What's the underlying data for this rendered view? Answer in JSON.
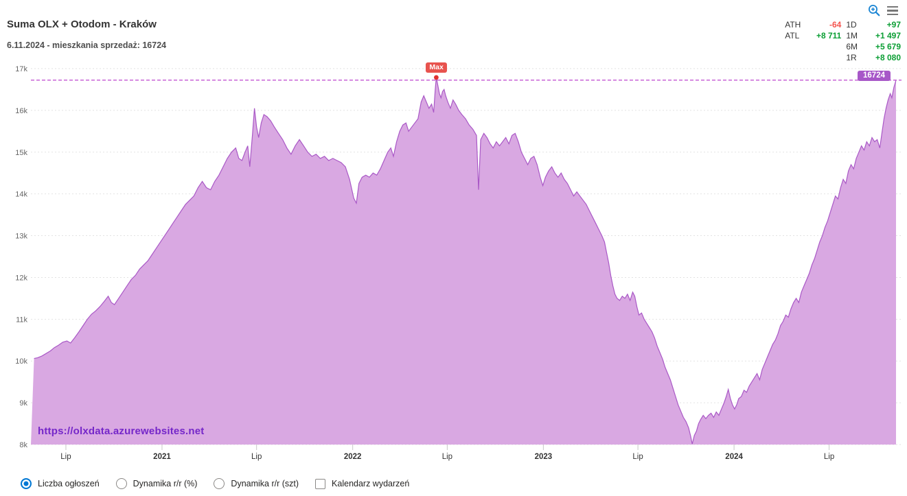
{
  "header": {
    "title": "Suma OLX + Otodom - Kraków",
    "subtitle": "6.11.2024 - mieszkania sprzedaż: 16724"
  },
  "toolbar": {
    "zoom_icon": "zoom-in-magnifier-icon",
    "menu_icon": "hamburger-menu-icon"
  },
  "stats": {
    "col1": [
      {
        "label": "ATH",
        "value": "-64",
        "color": "#f4544e"
      },
      {
        "label": "ATL",
        "value": "+8 711",
        "color": "#0b9e34"
      }
    ],
    "col2": [
      {
        "label": "1D",
        "value": "+97",
        "color": "#0b9e34"
      },
      {
        "label": "1M",
        "value": "+1 497",
        "color": "#0b9e34"
      },
      {
        "label": "6M",
        "value": "+5 679",
        "color": "#0b9e34"
      },
      {
        "label": "1R",
        "value": "+8 080",
        "color": "#0b9e34"
      }
    ]
  },
  "annotations": {
    "max_label": "Max",
    "current_value_label": "16724"
  },
  "watermark": "https://olxdata.azurewebsites.net",
  "controls": [
    {
      "type": "radio",
      "label": "Liczba ogłoszeń",
      "checked": true
    },
    {
      "type": "radio",
      "label": "Dynamika r/r (%)",
      "checked": false
    },
    {
      "type": "radio",
      "label": "Dynamika r/r (szt)",
      "checked": false
    },
    {
      "type": "checkbox",
      "label": "Kalendarz wydarzeń",
      "checked": false
    }
  ],
  "chart_data": {
    "type": "area",
    "title": "Suma OLX + Otodom - Kraków",
    "ylabel": "",
    "xlabel": "",
    "ylim": [
      8000,
      17000
    ],
    "x_range": [
      "2020-04-25",
      "2024-11-10"
    ],
    "grid": true,
    "current_value": 16724,
    "max_value": 16788,
    "max_date": "2022-06-10",
    "min_value": 8013,
    "min_date": "2023-10-13",
    "colors": {
      "fill": "#d9a8e2",
      "line": "#a958c6",
      "current_line": "#c355d2",
      "max_badge": "#e8534e",
      "current_badge": "#a757c8",
      "watermark": "#7527c9"
    },
    "y_ticks": [
      {
        "value": 8000,
        "label": "8k"
      },
      {
        "value": 9000,
        "label": "9k"
      },
      {
        "value": 10000,
        "label": "10k"
      },
      {
        "value": 11000,
        "label": "11k"
      },
      {
        "value": 12000,
        "label": "12k"
      },
      {
        "value": 13000,
        "label": "13k"
      },
      {
        "value": 14000,
        "label": "14k"
      },
      {
        "value": 15000,
        "label": "15k"
      },
      {
        "value": 16000,
        "label": "16k"
      },
      {
        "value": 17000,
        "label": "17k"
      }
    ],
    "x_ticks": [
      {
        "date": "2020-07-01",
        "label": "Lip",
        "bold": false
      },
      {
        "date": "2021-01-01",
        "label": "2021",
        "bold": true
      },
      {
        "date": "2021-07-01",
        "label": "Lip",
        "bold": false
      },
      {
        "date": "2022-01-01",
        "label": "2022",
        "bold": true
      },
      {
        "date": "2022-07-01",
        "label": "Lip",
        "bold": false
      },
      {
        "date": "2023-01-01",
        "label": "2023",
        "bold": true
      },
      {
        "date": "2023-07-01",
        "label": "Lip",
        "bold": false
      },
      {
        "date": "2024-01-01",
        "label": "2024",
        "bold": true
      },
      {
        "date": "2024-07-01",
        "label": "Lip",
        "bold": false
      }
    ],
    "points": [
      [
        "2020-05-01",
        10060
      ],
      [
        "2020-05-08",
        10080
      ],
      [
        "2020-05-16",
        10120
      ],
      [
        "2020-05-24",
        10180
      ],
      [
        "2020-06-01",
        10240
      ],
      [
        "2020-06-09",
        10320
      ],
      [
        "2020-06-17",
        10380
      ],
      [
        "2020-06-25",
        10450
      ],
      [
        "2020-07-03",
        10480
      ],
      [
        "2020-07-10",
        10430
      ],
      [
        "2020-07-18",
        10560
      ],
      [
        "2020-07-26",
        10700
      ],
      [
        "2020-08-03",
        10850
      ],
      [
        "2020-08-11",
        11000
      ],
      [
        "2020-08-19",
        11120
      ],
      [
        "2020-08-27",
        11200
      ],
      [
        "2020-09-04",
        11300
      ],
      [
        "2020-09-12",
        11420
      ],
      [
        "2020-09-20",
        11550
      ],
      [
        "2020-09-26",
        11400
      ],
      [
        "2020-10-02",
        11350
      ],
      [
        "2020-10-10",
        11500
      ],
      [
        "2020-10-18",
        11650
      ],
      [
        "2020-10-26",
        11800
      ],
      [
        "2020-11-03",
        11950
      ],
      [
        "2020-11-11",
        12050
      ],
      [
        "2020-11-19",
        12200
      ],
      [
        "2020-11-27",
        12300
      ],
      [
        "2020-12-05",
        12400
      ],
      [
        "2020-12-13",
        12550
      ],
      [
        "2020-12-21",
        12700
      ],
      [
        "2020-12-29",
        12850
      ],
      [
        "2021-01-06",
        13000
      ],
      [
        "2021-01-14",
        13150
      ],
      [
        "2021-01-22",
        13300
      ],
      [
        "2021-01-30",
        13450
      ],
      [
        "2021-02-07",
        13600
      ],
      [
        "2021-02-15",
        13750
      ],
      [
        "2021-02-23",
        13850
      ],
      [
        "2021-03-03",
        13950
      ],
      [
        "2021-03-11",
        14150
      ],
      [
        "2021-03-19",
        14300
      ],
      [
        "2021-03-27",
        14150
      ],
      [
        "2021-04-04",
        14100
      ],
      [
        "2021-04-12",
        14300
      ],
      [
        "2021-04-20",
        14450
      ],
      [
        "2021-04-28",
        14650
      ],
      [
        "2021-05-06",
        14850
      ],
      [
        "2021-05-14",
        15000
      ],
      [
        "2021-05-22",
        15100
      ],
      [
        "2021-05-28",
        14850
      ],
      [
        "2021-06-03",
        14800
      ],
      [
        "2021-06-09",
        15000
      ],
      [
        "2021-06-14",
        15150
      ],
      [
        "2021-06-18",
        14650
      ],
      [
        "2021-06-23",
        15400
      ],
      [
        "2021-06-27",
        16050
      ],
      [
        "2021-07-01",
        15600
      ],
      [
        "2021-07-05",
        15350
      ],
      [
        "2021-07-10",
        15700
      ],
      [
        "2021-07-15",
        15900
      ],
      [
        "2021-07-21",
        15850
      ],
      [
        "2021-07-28",
        15750
      ],
      [
        "2021-08-04",
        15600
      ],
      [
        "2021-08-12",
        15450
      ],
      [
        "2021-08-20",
        15300
      ],
      [
        "2021-08-28",
        15100
      ],
      [
        "2021-09-05",
        14950
      ],
      [
        "2021-09-13",
        15150
      ],
      [
        "2021-09-21",
        15300
      ],
      [
        "2021-09-29",
        15150
      ],
      [
        "2021-10-07",
        15000
      ],
      [
        "2021-10-15",
        14900
      ],
      [
        "2021-10-23",
        14950
      ],
      [
        "2021-10-31",
        14850
      ],
      [
        "2021-11-08",
        14900
      ],
      [
        "2021-11-16",
        14800
      ],
      [
        "2021-11-24",
        14850
      ],
      [
        "2021-12-02",
        14800
      ],
      [
        "2021-12-10",
        14750
      ],
      [
        "2021-12-18",
        14650
      ],
      [
        "2021-12-26",
        14350
      ],
      [
        "2022-01-03",
        13900
      ],
      [
        "2022-01-08",
        13780
      ],
      [
        "2022-01-13",
        14250
      ],
      [
        "2022-01-19",
        14400
      ],
      [
        "2022-01-26",
        14450
      ],
      [
        "2022-02-02",
        14400
      ],
      [
        "2022-02-09",
        14500
      ],
      [
        "2022-02-16",
        14450
      ],
      [
        "2022-02-23",
        14600
      ],
      [
        "2022-03-02",
        14800
      ],
      [
        "2022-03-09",
        15000
      ],
      [
        "2022-03-15",
        15100
      ],
      [
        "2022-03-20",
        14900
      ],
      [
        "2022-03-26",
        15250
      ],
      [
        "2022-04-01",
        15500
      ],
      [
        "2022-04-07",
        15650
      ],
      [
        "2022-04-13",
        15700
      ],
      [
        "2022-04-18",
        15500
      ],
      [
        "2022-04-24",
        15600
      ],
      [
        "2022-04-30",
        15700
      ],
      [
        "2022-05-06",
        15800
      ],
      [
        "2022-05-12",
        16200
      ],
      [
        "2022-05-17",
        16350
      ],
      [
        "2022-05-22",
        16200
      ],
      [
        "2022-05-27",
        16050
      ],
      [
        "2022-06-01",
        16150
      ],
      [
        "2022-06-05",
        15950
      ],
      [
        "2022-06-08",
        16500
      ],
      [
        "2022-06-10",
        16788
      ],
      [
        "2022-06-13",
        16600
      ],
      [
        "2022-06-16",
        16400
      ],
      [
        "2022-06-19",
        16300
      ],
      [
        "2022-06-22",
        16450
      ],
      [
        "2022-06-25",
        16500
      ],
      [
        "2022-06-28",
        16350
      ],
      [
        "2022-07-02",
        16200
      ],
      [
        "2022-07-07",
        16050
      ],
      [
        "2022-07-12",
        16250
      ],
      [
        "2022-07-17",
        16150
      ],
      [
        "2022-07-23",
        16000
      ],
      [
        "2022-07-29",
        15900
      ],
      [
        "2022-08-05",
        15800
      ],
      [
        "2022-08-12",
        15650
      ],
      [
        "2022-08-19",
        15550
      ],
      [
        "2022-08-26",
        15400
      ],
      [
        "2022-08-30",
        14100
      ],
      [
        "2022-09-03",
        15300
      ],
      [
        "2022-09-09",
        15450
      ],
      [
        "2022-09-15",
        15350
      ],
      [
        "2022-09-21",
        15200
      ],
      [
        "2022-09-27",
        15100
      ],
      [
        "2022-10-03",
        15250
      ],
      [
        "2022-10-09",
        15150
      ],
      [
        "2022-10-15",
        15250
      ],
      [
        "2022-10-21",
        15350
      ],
      [
        "2022-10-27",
        15200
      ],
      [
        "2022-11-02",
        15400
      ],
      [
        "2022-11-08",
        15450
      ],
      [
        "2022-11-14",
        15250
      ],
      [
        "2022-11-20",
        15000
      ],
      [
        "2022-11-26",
        14850
      ],
      [
        "2022-12-02",
        14700
      ],
      [
        "2022-12-08",
        14850
      ],
      [
        "2022-12-14",
        14900
      ],
      [
        "2022-12-20",
        14700
      ],
      [
        "2022-12-26",
        14400
      ],
      [
        "2022-12-31",
        14200
      ],
      [
        "2023-01-05",
        14400
      ],
      [
        "2023-01-11",
        14550
      ],
      [
        "2023-01-17",
        14650
      ],
      [
        "2023-01-23",
        14500
      ],
      [
        "2023-01-29",
        14400
      ],
      [
        "2023-02-04",
        14500
      ],
      [
        "2023-02-10",
        14350
      ],
      [
        "2023-02-16",
        14250
      ],
      [
        "2023-02-22",
        14100
      ],
      [
        "2023-02-28",
        13950
      ],
      [
        "2023-03-06",
        14050
      ],
      [
        "2023-03-12",
        13950
      ],
      [
        "2023-03-18",
        13850
      ],
      [
        "2023-03-24",
        13750
      ],
      [
        "2023-03-30",
        13600
      ],
      [
        "2023-04-05",
        13450
      ],
      [
        "2023-04-11",
        13300
      ],
      [
        "2023-04-17",
        13150
      ],
      [
        "2023-04-23",
        13000
      ],
      [
        "2023-04-28",
        12850
      ],
      [
        "2023-05-02",
        12600
      ],
      [
        "2023-05-06",
        12350
      ],
      [
        "2023-05-10",
        12050
      ],
      [
        "2023-05-14",
        11800
      ],
      [
        "2023-05-18",
        11600
      ],
      [
        "2023-05-22",
        11500
      ],
      [
        "2023-05-27",
        11450
      ],
      [
        "2023-06-01",
        11550
      ],
      [
        "2023-06-06",
        11500
      ],
      [
        "2023-06-11",
        11600
      ],
      [
        "2023-06-16",
        11450
      ],
      [
        "2023-06-21",
        11650
      ],
      [
        "2023-06-25",
        11550
      ],
      [
        "2023-06-29",
        11300
      ],
      [
        "2023-07-03",
        11100
      ],
      [
        "2023-07-08",
        11150
      ],
      [
        "2023-07-13",
        11000
      ],
      [
        "2023-07-18",
        10900
      ],
      [
        "2023-07-23",
        10800
      ],
      [
        "2023-07-28",
        10700
      ],
      [
        "2023-08-02",
        10550
      ],
      [
        "2023-08-07",
        10350
      ],
      [
        "2023-08-12",
        10200
      ],
      [
        "2023-08-17",
        10050
      ],
      [
        "2023-08-22",
        9850
      ],
      [
        "2023-08-27",
        9700
      ],
      [
        "2023-09-01",
        9550
      ],
      [
        "2023-09-06",
        9350
      ],
      [
        "2023-09-11",
        9150
      ],
      [
        "2023-09-16",
        8950
      ],
      [
        "2023-09-21",
        8800
      ],
      [
        "2023-09-26",
        8650
      ],
      [
        "2023-10-01",
        8550
      ],
      [
        "2023-10-06",
        8400
      ],
      [
        "2023-10-10",
        8200
      ],
      [
        "2023-10-13",
        8013
      ],
      [
        "2023-10-17",
        8220
      ],
      [
        "2023-10-21",
        8320
      ],
      [
        "2023-10-25",
        8500
      ],
      [
        "2023-10-29",
        8600
      ],
      [
        "2023-11-03",
        8700
      ],
      [
        "2023-11-08",
        8620
      ],
      [
        "2023-11-13",
        8700
      ],
      [
        "2023-11-18",
        8750
      ],
      [
        "2023-11-23",
        8650
      ],
      [
        "2023-11-28",
        8780
      ],
      [
        "2023-12-03",
        8700
      ],
      [
        "2023-12-08",
        8850
      ],
      [
        "2023-12-13",
        9000
      ],
      [
        "2023-12-17",
        9150
      ],
      [
        "2023-12-21",
        9320
      ],
      [
        "2023-12-25",
        9100
      ],
      [
        "2023-12-29",
        8950
      ],
      [
        "2024-01-02",
        8850
      ],
      [
        "2024-01-06",
        8950
      ],
      [
        "2024-01-10",
        9100
      ],
      [
        "2024-01-15",
        9150
      ],
      [
        "2024-01-20",
        9300
      ],
      [
        "2024-01-25",
        9250
      ],
      [
        "2024-01-30",
        9400
      ],
      [
        "2024-02-04",
        9500
      ],
      [
        "2024-02-09",
        9600
      ],
      [
        "2024-02-14",
        9700
      ],
      [
        "2024-02-19",
        9550
      ],
      [
        "2024-02-24",
        9800
      ],
      [
        "2024-02-29",
        9950
      ],
      [
        "2024-03-05",
        10100
      ],
      [
        "2024-03-10",
        10250
      ],
      [
        "2024-03-15",
        10400
      ],
      [
        "2024-03-20",
        10500
      ],
      [
        "2024-03-25",
        10650
      ],
      [
        "2024-03-30",
        10850
      ],
      [
        "2024-04-04",
        10950
      ],
      [
        "2024-04-09",
        11100
      ],
      [
        "2024-04-14",
        11050
      ],
      [
        "2024-04-19",
        11250
      ],
      [
        "2024-04-24",
        11400
      ],
      [
        "2024-04-29",
        11500
      ],
      [
        "2024-05-04",
        11400
      ],
      [
        "2024-05-09",
        11650
      ],
      [
        "2024-05-14",
        11800
      ],
      [
        "2024-05-19",
        11950
      ],
      [
        "2024-05-24",
        12100
      ],
      [
        "2024-05-29",
        12300
      ],
      [
        "2024-06-03",
        12450
      ],
      [
        "2024-06-08",
        12650
      ],
      [
        "2024-06-13",
        12850
      ],
      [
        "2024-06-18",
        13000
      ],
      [
        "2024-06-23",
        13200
      ],
      [
        "2024-06-28",
        13350
      ],
      [
        "2024-07-03",
        13550
      ],
      [
        "2024-07-08",
        13750
      ],
      [
        "2024-07-13",
        13950
      ],
      [
        "2024-07-18",
        13880
      ],
      [
        "2024-07-23",
        14150
      ],
      [
        "2024-07-28",
        14350
      ],
      [
        "2024-08-02",
        14250
      ],
      [
        "2024-08-07",
        14550
      ],
      [
        "2024-08-12",
        14700
      ],
      [
        "2024-08-17",
        14600
      ],
      [
        "2024-08-22",
        14850
      ],
      [
        "2024-08-27",
        15000
      ],
      [
        "2024-09-01",
        15150
      ],
      [
        "2024-09-06",
        15050
      ],
      [
        "2024-09-11",
        15250
      ],
      [
        "2024-09-16",
        15150
      ],
      [
        "2024-09-21",
        15350
      ],
      [
        "2024-09-26",
        15250
      ],
      [
        "2024-10-01",
        15300
      ],
      [
        "2024-10-06",
        15100
      ],
      [
        "2024-10-10",
        15450
      ],
      [
        "2024-10-14",
        15800
      ],
      [
        "2024-10-18",
        16050
      ],
      [
        "2024-10-22",
        16250
      ],
      [
        "2024-10-26",
        16400
      ],
      [
        "2024-10-29",
        16300
      ],
      [
        "2024-11-02",
        16550
      ],
      [
        "2024-11-06",
        16724
      ]
    ]
  }
}
